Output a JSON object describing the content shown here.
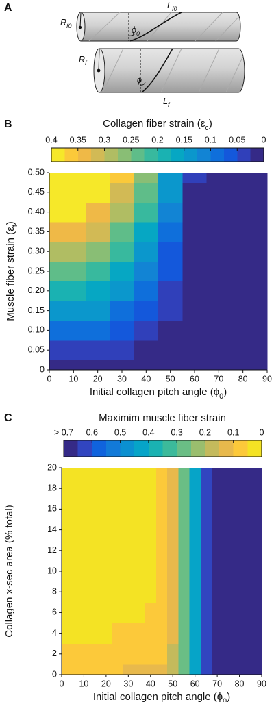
{
  "diagram": {
    "panel_label": "A",
    "labels": [
      {
        "text": "R",
        "sub": "f0"
      },
      {
        "text": "L",
        "sub": "f0"
      },
      {
        "text": "ϕ",
        "sub": "0"
      },
      {
        "text": "R",
        "sub": "f"
      },
      {
        "text": "ϕ"
      },
      {
        "text": "L",
        "sub": "f"
      }
    ]
  },
  "chart_data": [
    {
      "type": "contour",
      "panel_label": "B",
      "colorbar_title": {
        "text": "Collagen fiber strain (ε",
        "sub": "c",
        "after": ")"
      },
      "colorbar_lim": [
        0.4,
        0
      ],
      "colorbar_ticks": [
        0.4,
        0.35,
        0.3,
        0.25,
        0.2,
        0.15,
        0.1,
        0.05,
        0
      ],
      "colors": [
        "#f6e829",
        "#fbc93a",
        "#efb947",
        "#d2ba55",
        "#b0bd63",
        "#89be75",
        "#5fbd89",
        "#38b99e",
        "#1ab2b2",
        "#06a7c3",
        "#0b97cc",
        "#1284d4",
        "#0f6fdb",
        "#1458db",
        "#3040ba",
        "#352a87"
      ],
      "x_label": {
        "text": "Initial collagen pitch angle (ϕ",
        "sub": "0",
        "after": ")"
      },
      "y_label": {
        "text": "Muscle fiber strain (ε",
        "sub": "f",
        "after": ")"
      },
      "xlim": [
        0,
        90
      ],
      "xticks": [
        0,
        10,
        20,
        30,
        40,
        50,
        60,
        70,
        80,
        90
      ],
      "ylim": [
        0,
        0.5
      ],
      "yticks": [
        0,
        0.05,
        {
          "value": 0.1,
          "label": "0.10"
        },
        0.15,
        {
          "value": 0.2,
          "label": "0.20"
        },
        0.25,
        {
          "value": 0.3,
          "label": "0.30"
        },
        0.35,
        {
          "value": 0.4,
          "label": "0.40"
        },
        0.45,
        {
          "value": 0.5,
          "label": "0.50"
        }
      ],
      "x": [
        0,
        10,
        20,
        30,
        40,
        50,
        60,
        70,
        80,
        90
      ],
      "y": [
        0,
        0.05,
        0.1,
        0.15,
        0.2,
        0.25,
        0.3,
        0.35,
        0.4,
        0.45,
        0.5
      ],
      "z": [
        [
          0,
          0,
          0,
          0,
          0,
          0,
          0,
          0,
          0,
          0
        ],
        [
          0.05,
          0.048,
          0.042,
          0.032,
          0.02,
          0.007,
          0,
          0,
          0,
          0
        ],
        [
          0.1,
          0.096,
          0.084,
          0.065,
          0.042,
          0.017,
          0,
          0,
          0,
          0
        ],
        [
          0.15,
          0.144,
          0.127,
          0.1,
          0.065,
          0.028,
          0,
          0,
          0,
          0
        ],
        [
          0.2,
          0.192,
          0.17,
          0.135,
          0.091,
          0.041,
          0,
          0,
          0,
          0
        ],
        [
          0.25,
          0.241,
          0.214,
          0.171,
          0.117,
          0.056,
          0,
          0,
          0,
          0
        ],
        [
          0.3,
          0.289,
          0.258,
          0.208,
          0.144,
          0.072,
          0,
          0,
          0,
          0
        ],
        [
          0.35,
          0.338,
          0.302,
          0.246,
          0.173,
          0.09,
          0.006,
          0,
          0,
          0
        ],
        [
          0.4,
          0.387,
          0.347,
          0.284,
          0.202,
          0.109,
          0.013,
          0,
          0,
          0
        ],
        [
          0.45,
          0.435,
          0.392,
          0.323,
          0.232,
          0.128,
          0.021,
          0,
          0,
          0
        ],
        [
          0.5,
          0.484,
          0.437,
          0.362,
          0.263,
          0.149,
          0.031,
          0,
          0,
          0
        ]
      ]
    },
    {
      "type": "contour",
      "panel_label": "C",
      "colorbar_title": {
        "text": "Maximim muscle fiber strain"
      },
      "colorbar_lim": [
        0.7,
        0
      ],
      "colorbar_ticks": [
        {
          "value": 0.7,
          "label": "> 0.7"
        },
        0.6,
        0.5,
        0.4,
        0.3,
        0.2,
        0.1,
        0
      ],
      "colors": [
        "#352a87",
        "#3145c0",
        "#1063dd",
        "#127ad8",
        "#0b90d0",
        "#06a4c8",
        "#1ab2b2",
        "#3cba9b",
        "#6abe85",
        "#9abe6e",
        "#c4ba5c",
        "#e8b94c",
        "#fcc93a",
        "#f4e324"
      ],
      "x_label": {
        "text": "Initial collagen pitch angle (ϕ",
        "sub": "0",
        "after": ")"
      },
      "y_label": {
        "text": "Collagen x-sec area (% total)"
      },
      "xlim": [
        0,
        90
      ],
      "xticks": [
        0,
        10,
        20,
        30,
        40,
        50,
        60,
        70,
        80,
        90
      ],
      "ylim": [
        0,
        20
      ],
      "yticks": [
        0,
        2,
        4,
        6,
        8,
        10,
        12,
        14,
        16,
        18,
        20
      ],
      "x": [
        0,
        5,
        10,
        15,
        20,
        25,
        30,
        35,
        40,
        45,
        50,
        55,
        60,
        65,
        70,
        75,
        80,
        85,
        90
      ],
      "y": [
        0,
        2,
        4,
        6,
        8,
        10,
        12,
        14,
        16,
        18,
        20
      ],
      "z": [
        [
          0.1,
          0.1,
          0.1,
          0.1,
          0.1,
          0.1,
          0.11,
          0.11,
          0.12,
          0.14,
          0.19,
          0.3,
          0.43,
          0.62,
          0.8,
          0.8,
          0.8,
          0.8,
          0.8
        ],
        [
          0.06,
          0.06,
          0.06,
          0.06,
          0.06,
          0.06,
          0.07,
          0.07,
          0.08,
          0.1,
          0.16,
          0.29,
          0.42,
          0.61,
          0.8,
          0.8,
          0.8,
          0.8,
          0.8
        ],
        [
          0.04,
          0.04,
          0.04,
          0.04,
          0.04,
          0.05,
          0.05,
          0.05,
          0.06,
          0.08,
          0.14,
          0.28,
          0.42,
          0.6,
          0.8,
          0.8,
          0.8,
          0.8,
          0.8
        ],
        [
          0.03,
          0.03,
          0.03,
          0.03,
          0.03,
          0.03,
          0.04,
          0.04,
          0.05,
          0.07,
          0.13,
          0.28,
          0.42,
          0.6,
          0.8,
          0.8,
          0.8,
          0.8,
          0.8
        ],
        [
          0.02,
          0.02,
          0.02,
          0.03,
          0.03,
          0.03,
          0.03,
          0.04,
          0.04,
          0.06,
          0.13,
          0.28,
          0.42,
          0.6,
          0.8,
          0.8,
          0.8,
          0.8,
          0.8
        ],
        [
          0.02,
          0.02,
          0.02,
          0.02,
          0.03,
          0.03,
          0.03,
          0.03,
          0.04,
          0.06,
          0.13,
          0.28,
          0.42,
          0.6,
          0.8,
          0.8,
          0.8,
          0.8,
          0.8
        ],
        [
          0.02,
          0.02,
          0.02,
          0.02,
          0.03,
          0.03,
          0.03,
          0.03,
          0.04,
          0.06,
          0.13,
          0.28,
          0.42,
          0.6,
          0.8,
          0.8,
          0.8,
          0.8,
          0.8
        ],
        [
          0.02,
          0.02,
          0.02,
          0.02,
          0.03,
          0.03,
          0.03,
          0.03,
          0.04,
          0.06,
          0.13,
          0.28,
          0.42,
          0.6,
          0.8,
          0.8,
          0.8,
          0.8,
          0.8
        ],
        [
          0.02,
          0.02,
          0.02,
          0.02,
          0.03,
          0.03,
          0.03,
          0.03,
          0.04,
          0.06,
          0.13,
          0.28,
          0.42,
          0.6,
          0.8,
          0.8,
          0.8,
          0.8,
          0.8
        ],
        [
          0.02,
          0.02,
          0.02,
          0.02,
          0.02,
          0.03,
          0.03,
          0.03,
          0.04,
          0.06,
          0.13,
          0.28,
          0.42,
          0.6,
          0.8,
          0.8,
          0.8,
          0.8,
          0.8
        ],
        [
          0.02,
          0.02,
          0.02,
          0.02,
          0.02,
          0.03,
          0.03,
          0.03,
          0.04,
          0.06,
          0.13,
          0.28,
          0.42,
          0.6,
          0.8,
          0.8,
          0.8,
          0.8,
          0.8
        ]
      ]
    }
  ]
}
